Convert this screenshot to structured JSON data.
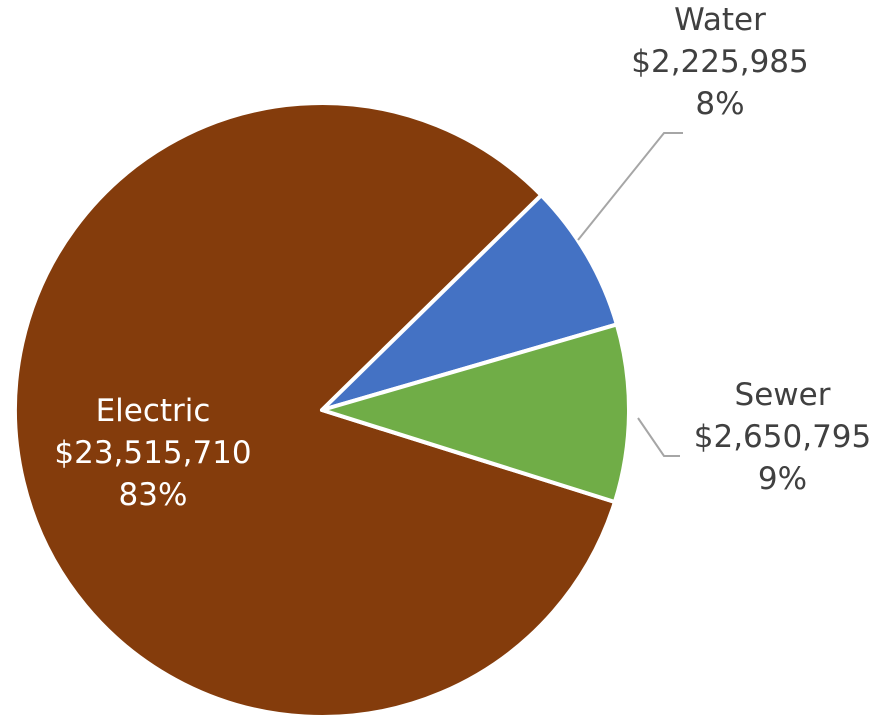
{
  "chart_data": {
    "type": "pie",
    "title": "",
    "slices": [
      {
        "label": "Electric",
        "value": 23515710,
        "value_label": "$23,515,710",
        "percent_label": "83%",
        "color": "#843C0C"
      },
      {
        "label": "Water",
        "value": 2225985,
        "value_label": "$2,225,985",
        "percent_label": "8%",
        "color": "#4472C4"
      },
      {
        "label": "Sewer",
        "value": 2650795,
        "value_label": "$2,650,795",
        "percent_label": "9%",
        "color": "#70AD47"
      }
    ],
    "legend": "none"
  }
}
